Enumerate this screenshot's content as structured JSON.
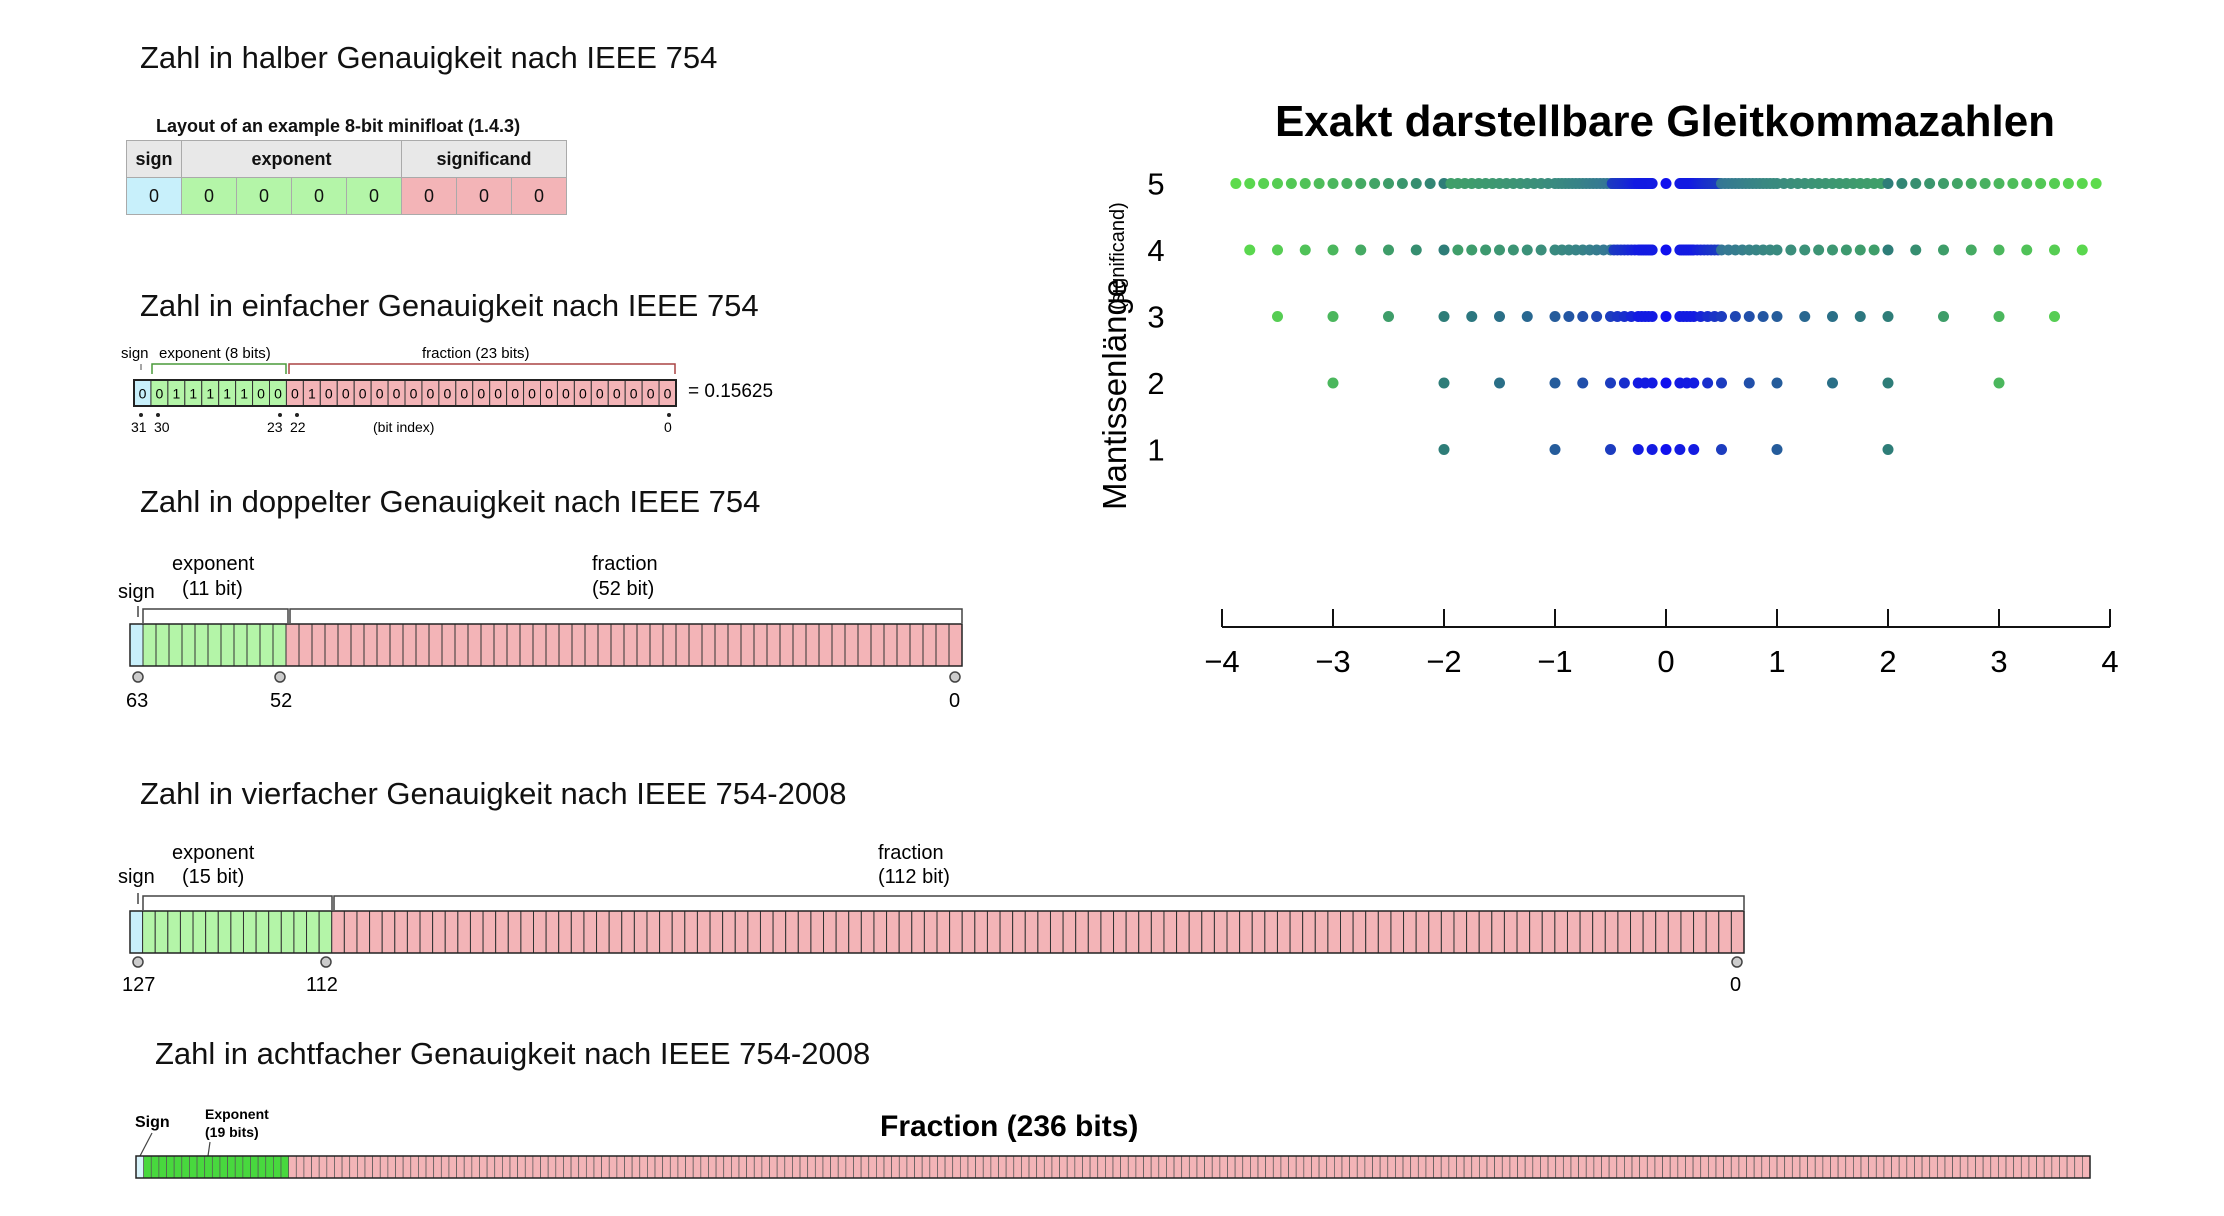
{
  "half": {
    "title": "Zahl in halber Genauigkeit nach IEEE 754",
    "caption": "Layout of an example 8-bit minifloat (1.4.3)",
    "headers": [
      "sign",
      "exponent",
      "significand"
    ],
    "sign_bits": [
      "0"
    ],
    "exponent_bits": [
      "0",
      "0",
      "0",
      "0"
    ],
    "significand_bits": [
      "0",
      "0",
      "0"
    ]
  },
  "single": {
    "title": "Zahl in einfacher Genauigkeit nach IEEE 754",
    "sign_label": "sign",
    "exponent_label": "exponent (8 bits)",
    "fraction_label": "fraction (23 bits)",
    "bits": "00111110001000000000000000000000",
    "value": "= 0.15625",
    "idx_31": "31",
    "idx_30": "30",
    "idx_23": "23",
    "idx_22": "22",
    "bit_index_label": "(bit index)",
    "idx_0": "0"
  },
  "double": {
    "title": "Zahl in doppelter Genauigkeit nach IEEE 754",
    "sign_label": "sign",
    "exponent_label": "exponent",
    "exponent_size": "(11 bit)",
    "fraction_label": "fraction",
    "fraction_size": "(52 bit)",
    "idx_63": "63",
    "idx_52": "52",
    "idx_0": "0"
  },
  "quad": {
    "title": "Zahl in vierfacher Genauigkeit nach IEEE 754-2008",
    "sign_label": "sign",
    "exponent_label": "exponent",
    "exponent_size": "(15 bit)",
    "fraction_label": "fraction",
    "fraction_size": "(112 bit)",
    "idx_127": "127",
    "idx_112": "112",
    "idx_0": "0"
  },
  "octuple": {
    "title": "Zahl in achtfacher Genauigkeit nach IEEE 754-2008",
    "sign_label": "Sign",
    "exponent_label": "Exponent",
    "exponent_size": "(19 bits)",
    "fraction_label": "Fraction (236 bits)"
  },
  "chart_data": {
    "type": "scatter",
    "title": "Exakt darstellbare Gleitkommazahlen",
    "ylabel": "Mantissenlänge",
    "ylabel_suffix": "(significand)",
    "xlim": [
      -4,
      4
    ],
    "x_ticks": [
      "−4",
      "−3",
      "−2",
      "−1",
      "0",
      "1",
      "2",
      "3",
      "4"
    ],
    "y_ticks": [
      "1",
      "2",
      "3",
      "4",
      "5"
    ],
    "rows": [
      1,
      2,
      3,
      4,
      5
    ],
    "exponent_range": [
      -3,
      1
    ],
    "color_far": "#5fe04a",
    "color_mid": "#2e7d78",
    "color_near": "#1010ee"
  }
}
